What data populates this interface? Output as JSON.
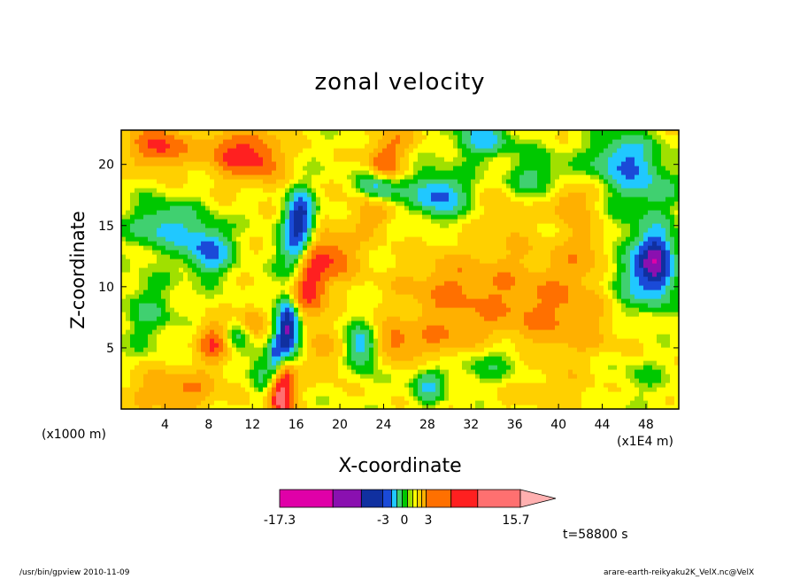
{
  "chart_data": {
    "type": "heatmap",
    "title": "zonal velocity",
    "xlabel": "X-coordinate",
    "ylabel": "Z-coordinate",
    "x_unit": "(x1000 m)",
    "x_scale_note": "(x1E4 m)",
    "x_ticks": [
      4,
      8,
      12,
      16,
      20,
      24,
      28,
      32,
      36,
      40,
      44,
      48
    ],
    "y_ticks": [
      5,
      10,
      15,
      20
    ],
    "xlim": [
      0,
      51
    ],
    "ylim": [
      0,
      22.8
    ],
    "colorbar": {
      "min": -17.3,
      "max": 15.7,
      "labels": [
        "-17.3",
        "-3",
        "0",
        "3",
        "15.7"
      ],
      "colors": [
        "#e000a8",
        "#8a10b0",
        "#1030a0",
        "#1a4ad8",
        "#20c8ff",
        "#40d070",
        "#00c800",
        "#a0e000",
        "#ffff00",
        "#ffd000",
        "#ffb000",
        "#ff7000",
        "#ff2020",
        "#ff7070",
        "#ffb0b0"
      ]
    },
    "fields": {
      "background": 0.5,
      "blobs": [
        [
          14.6,
          2.0,
          1.2,
          3.0,
          14
        ],
        [
          15.2,
          6.5,
          1.0,
          2.5,
          -14
        ],
        [
          14.2,
          4.0,
          0.8,
          2.0,
          -11
        ],
        [
          16.0,
          13.0,
          1.4,
          3.0,
          -9
        ],
        [
          17.0,
          10.0,
          1.6,
          2.5,
          10
        ],
        [
          16.5,
          16.0,
          1.2,
          2.0,
          -8
        ],
        [
          19.0,
          12.5,
          2.5,
          2.0,
          7
        ],
        [
          23.0,
          16.5,
          2.0,
          1.8,
          6
        ],
        [
          10.0,
          21.0,
          2.5,
          2.0,
          7
        ],
        [
          3.5,
          21.5,
          2.5,
          1.8,
          8
        ],
        [
          13.0,
          20.5,
          2.0,
          2.0,
          6
        ],
        [
          24.0,
          20.0,
          1.5,
          1.5,
          7
        ],
        [
          23.5,
          18.0,
          1.8,
          1.5,
          -9
        ],
        [
          29.0,
          17.5,
          2.5,
          1.8,
          -8
        ],
        [
          25.0,
          22.0,
          2.0,
          1.2,
          4
        ],
        [
          33.0,
          22.0,
          2.5,
          1.5,
          -6
        ],
        [
          38.0,
          19.0,
          2.5,
          2.0,
          -4
        ],
        [
          41.0,
          17.0,
          2.0,
          1.5,
          5
        ],
        [
          46.0,
          20.5,
          3.0,
          2.0,
          -7
        ],
        [
          48.0,
          18.0,
          3.0,
          2.0,
          -4
        ],
        [
          47.0,
          11.0,
          3.5,
          4.0,
          -7
        ],
        [
          49.0,
          12.0,
          1.5,
          2.5,
          -10
        ],
        [
          40.0,
          8.0,
          8.0,
          4.0,
          5
        ],
        [
          30.0,
          10.0,
          5.0,
          3.0,
          4
        ],
        [
          43.0,
          13.0,
          3.0,
          2.5,
          4
        ],
        [
          4.0,
          15.0,
          3.0,
          2.0,
          -6
        ],
        [
          8.0,
          13.0,
          2.0,
          2.0,
          -8
        ],
        [
          2.5,
          8.0,
          2.5,
          3.0,
          -3
        ],
        [
          5.0,
          1.5,
          4.0,
          1.8,
          5
        ],
        [
          8.5,
          5.5,
          1.5,
          1.8,
          7
        ],
        [
          10.5,
          6.0,
          1.5,
          1.5,
          -4
        ],
        [
          12.0,
          7.0,
          1.2,
          1.5,
          5
        ],
        [
          13.0,
          3.0,
          1.2,
          2.0,
          -5
        ],
        [
          22.0,
          5.0,
          1.5,
          1.8,
          -7
        ],
        [
          25.0,
          5.5,
          1.5,
          1.5,
          5
        ],
        [
          28.0,
          2.0,
          1.5,
          1.5,
          -5
        ],
        [
          19.0,
          4.5,
          2.0,
          2.0,
          3
        ],
        [
          33.5,
          4.0,
          4.0,
          2.0,
          -4
        ],
        [
          40.0,
          1.5,
          6.0,
          1.5,
          2
        ],
        [
          47.0,
          2.5,
          4.0,
          2.0,
          -2
        ],
        [
          29.5,
          5.5,
          4.0,
          2.0,
          4
        ],
        [
          36.0,
          13.0,
          3.0,
          3.0,
          1
        ],
        [
          35.0,
          16.0,
          2.0,
          2.0,
          2
        ]
      ]
    }
  },
  "labels": {
    "timestamp": "t=58800  s",
    "footer_left": "/usr/bin/gpview   2010-11-09",
    "footer_right": "arare-earth-reikyaku2K_VelX.nc@VelX"
  }
}
